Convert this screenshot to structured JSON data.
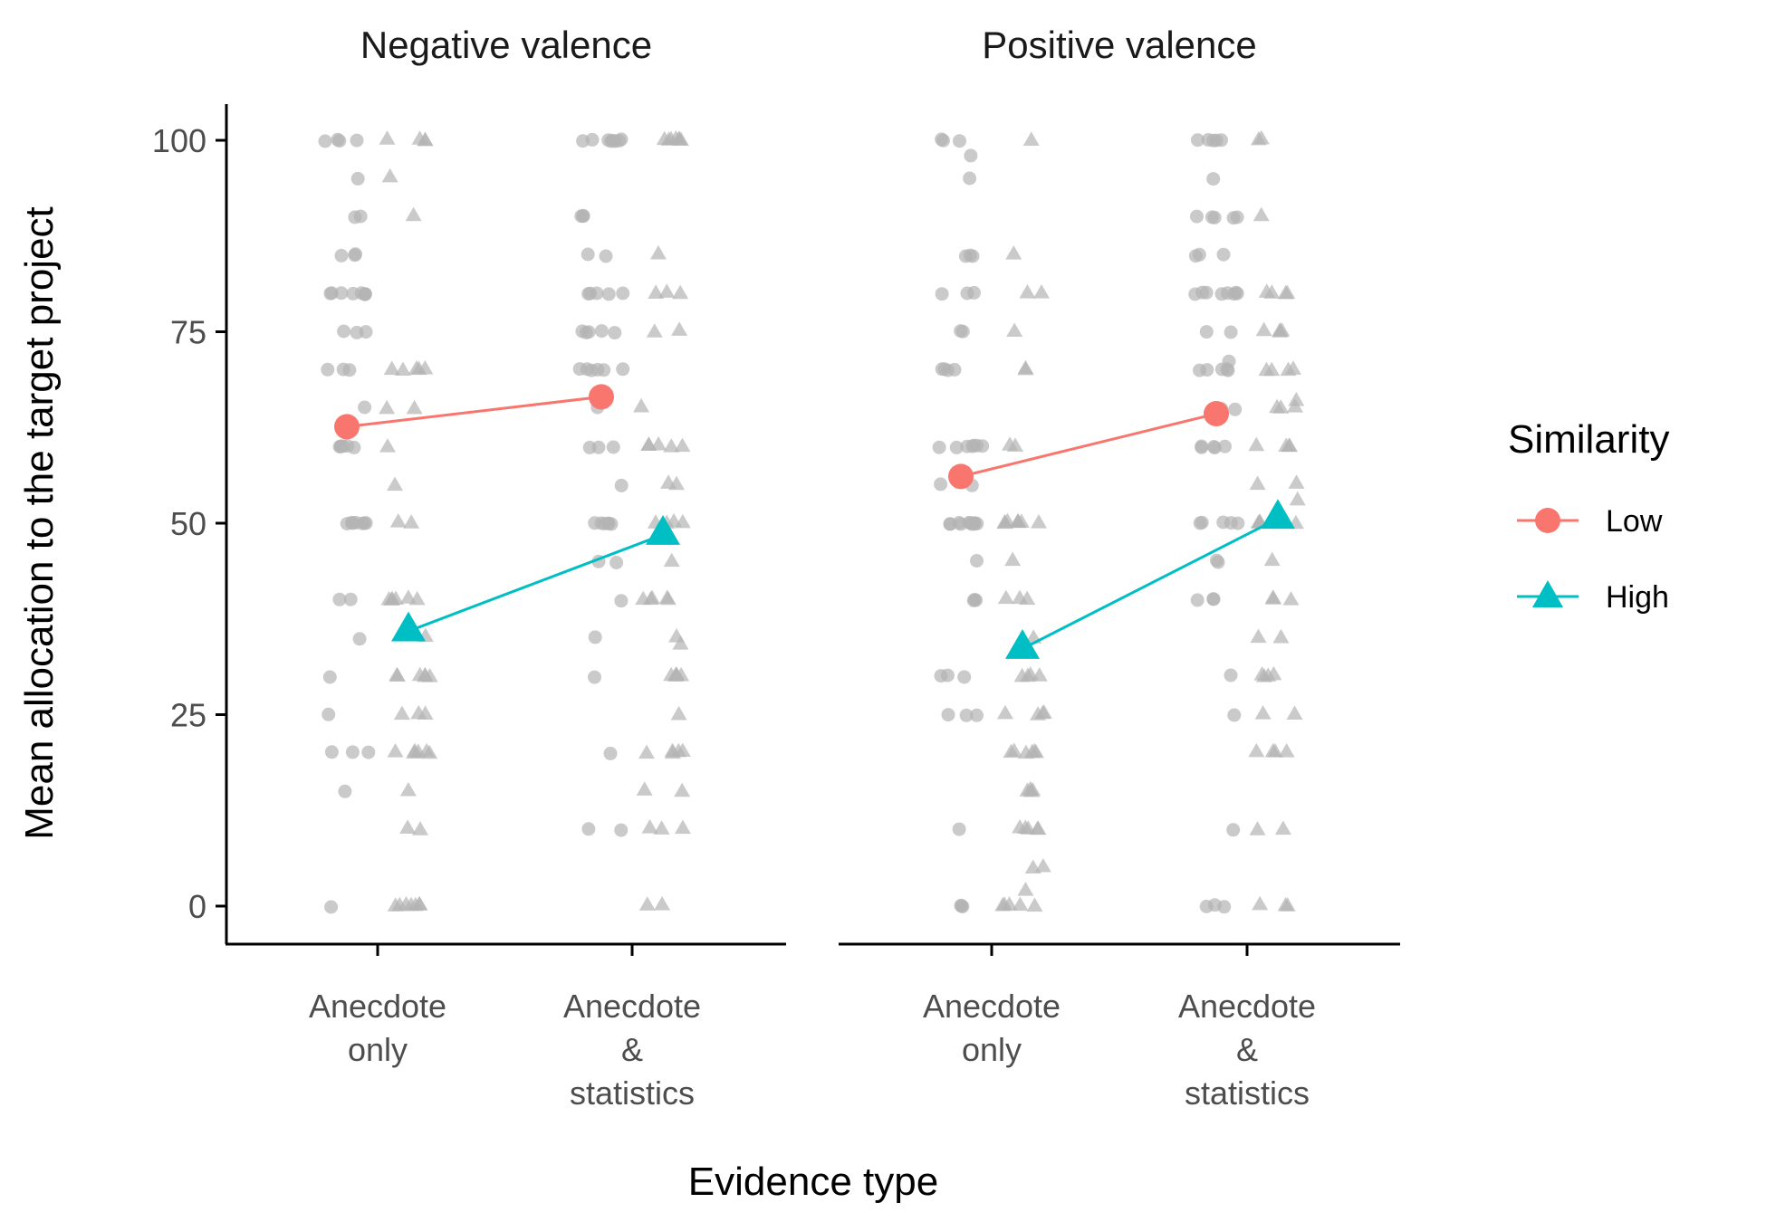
{
  "chart_data": {
    "type": "scatter",
    "xlabel": "Evidence type",
    "ylabel": "Mean allocation to the target project",
    "ylim": [
      -5,
      105
    ],
    "yticks": [
      0,
      25,
      50,
      75,
      100
    ],
    "categories": [
      [
        "Anecdote",
        "only"
      ],
      [
        "Anecdote",
        "&",
        "statistics"
      ]
    ],
    "grid": false,
    "legend": {
      "title": "Similarity",
      "position": "right",
      "entries": [
        {
          "label": "Low",
          "color": "#F8766D",
          "shape": "circle"
        },
        {
          "label": "High",
          "color": "#00BFC4",
          "shape": "triangle"
        }
      ]
    },
    "raw_point_color": "#b3b3b3",
    "facets": [
      {
        "title": "Negative valence",
        "means": [
          {
            "series": "Low",
            "values": [
              62.6,
              66.5
            ]
          },
          {
            "series": "High",
            "values": [
              35.9,
              48.5
            ]
          }
        ],
        "raw": [
          {
            "series": "Low",
            "category": 0,
            "values": [
              100,
              100,
              100,
              100,
              95,
              90,
              90,
              85,
              85,
              85,
              80,
              80,
              80,
              80,
              80,
              80,
              80,
              80,
              75,
              75,
              75,
              70,
              70,
              70,
              65,
              60,
              60,
              60,
              60,
              60,
              60,
              50,
              50,
              50,
              50,
              50,
              50,
              50,
              40,
              40,
              35,
              30,
              25,
              20,
              20,
              20,
              15,
              0
            ]
          },
          {
            "series": "High",
            "category": 0,
            "values": [
              100,
              100,
              100,
              100,
              95,
              90,
              70,
              70,
              70,
              70,
              70,
              65,
              65,
              60,
              55,
              50,
              50,
              40,
              40,
              40,
              40,
              40,
              40,
              35,
              30,
              30,
              30,
              30,
              30,
              30,
              25,
              25,
              25,
              20,
              20,
              20,
              20,
              20,
              20,
              15,
              10,
              10,
              0,
              0,
              0,
              0,
              0,
              0,
              0
            ]
          },
          {
            "series": "Low",
            "category": 1,
            "values": [
              100,
              100,
              100,
              100,
              100,
              100,
              100,
              100,
              90,
              90,
              90,
              85,
              85,
              80,
              80,
              80,
              80,
              80,
              75,
              75,
              75,
              75,
              75,
              70,
              70,
              70,
              70,
              70,
              70,
              65,
              60,
              60,
              60,
              55,
              50,
              50,
              50,
              50,
              50,
              50,
              45,
              45,
              40,
              35,
              30,
              20,
              10,
              10
            ]
          },
          {
            "series": "High",
            "category": 1,
            "values": [
              100,
              100,
              100,
              100,
              100,
              100,
              100,
              85,
              80,
              80,
              80,
              75,
              75,
              65,
              60,
              60,
              60,
              60,
              60,
              55,
              55,
              50,
              50,
              50,
              50,
              45,
              40,
              40,
              40,
              40,
              40,
              35,
              34,
              30,
              30,
              30,
              30,
              30,
              25,
              20,
              20,
              20,
              20,
              20,
              15,
              15,
              10,
              10,
              10,
              0,
              0
            ]
          }
        ]
      },
      {
        "title": "Positive valence",
        "means": [
          {
            "series": "Low",
            "values": [
              56.1,
              64.3
            ]
          },
          {
            "series": "High",
            "values": [
              33.6,
              50.6
            ]
          }
        ],
        "raw": [
          {
            "series": "Low",
            "category": 0,
            "values": [
              100,
              100,
              100,
              98,
              95,
              85,
              85,
              85,
              80,
              80,
              80,
              75,
              75,
              70,
              70,
              70,
              70,
              60,
              60,
              60,
              60,
              60,
              60,
              60,
              55,
              55,
              50,
              50,
              50,
              50,
              50,
              50,
              50,
              50,
              50,
              50,
              45,
              40,
              40,
              40,
              30,
              30,
              30,
              25,
              25,
              25,
              10,
              0,
              0,
              0
            ]
          },
          {
            "series": "High",
            "category": 0,
            "values": [
              100,
              85,
              80,
              80,
              75,
              70,
              70,
              60,
              60,
              50,
              50,
              50,
              50,
              50,
              50,
              50,
              50,
              45,
              40,
              40,
              40,
              35,
              30,
              30,
              30,
              30,
              25,
              25,
              25,
              25,
              20,
              20,
              20,
              20,
              20,
              20,
              15,
              15,
              15,
              15,
              10,
              10,
              10,
              10,
              10,
              5,
              5,
              2,
              0,
              0,
              0,
              0,
              0
            ]
          },
          {
            "series": "Low",
            "category": 1,
            "values": [
              100,
              100,
              100,
              100,
              100,
              95,
              90,
              90,
              90,
              90,
              90,
              85,
              85,
              85,
              80,
              80,
              80,
              80,
              80,
              80,
              80,
              80,
              75,
              75,
              71,
              70,
              70,
              70,
              70,
              70,
              65,
              65,
              60,
              60,
              60,
              60,
              60,
              50,
              50,
              50,
              50,
              50,
              45,
              45,
              40,
              40,
              40,
              30,
              25,
              10,
              0,
              0,
              0
            ]
          },
          {
            "series": "High",
            "category": 1,
            "values": [
              100,
              100,
              90,
              80,
              80,
              80,
              80,
              75,
              75,
              75,
              75,
              70,
              70,
              70,
              70,
              66,
              65,
              65,
              65,
              60,
              60,
              60,
              60,
              55,
              55,
              53,
              50,
              50,
              50,
              50,
              50,
              50,
              45,
              40,
              40,
              40,
              35,
              35,
              30,
              30,
              30,
              30,
              25,
              25,
              20,
              20,
              20,
              20,
              10,
              10,
              0,
              0,
              0
            ]
          }
        ]
      }
    ]
  }
}
